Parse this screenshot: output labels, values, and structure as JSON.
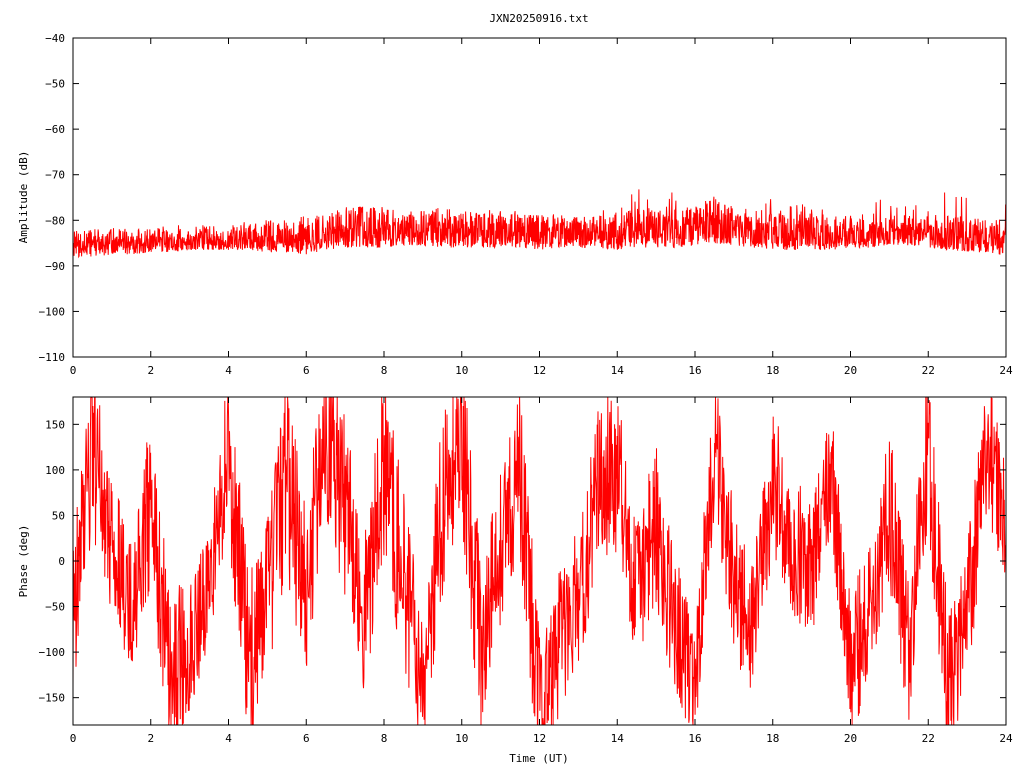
{
  "title": "JXN20250916.txt",
  "chart_data": [
    {
      "type": "line",
      "panel": "amplitude",
      "xlabel": "",
      "ylabel": "Amplitude (dB)",
      "xlim": [
        0,
        24
      ],
      "ylim": [
        -110,
        -40
      ],
      "xticks": [
        0,
        2,
        4,
        6,
        8,
        10,
        12,
        14,
        16,
        18,
        20,
        22,
        24
      ],
      "yticks": [
        -40,
        -50,
        -60,
        -70,
        -80,
        -90,
        -100,
        -110
      ],
      "grid": false,
      "series_color": "#ff0000",
      "series": [
        {
          "x": [
            0,
            0.5,
            1,
            1.5,
            2,
            2.5,
            3,
            3.5,
            4,
            4.5,
            5,
            5.5,
            6,
            6.5,
            7,
            7.5,
            8,
            8.5,
            9,
            9.5,
            10,
            10.5,
            11,
            11.5,
            12,
            12.5,
            13,
            13.5,
            14,
            14.5,
            15,
            15.5,
            16,
            16.5,
            17,
            17.5,
            18,
            18.5,
            19,
            19.5,
            20,
            20.5,
            21,
            21.5,
            22,
            22.5,
            23,
            23.5,
            24
          ],
          "low": [
            -88,
            -88,
            -87.5,
            -87.5,
            -87,
            -87,
            -86.5,
            -86.5,
            -86.5,
            -86.5,
            -87,
            -87,
            -87.5,
            -86.5,
            -86,
            -86,
            -86,
            -85.5,
            -85.5,
            -86,
            -86,
            -86,
            -86,
            -86,
            -86.5,
            -86,
            -86,
            -86,
            -86.5,
            -86,
            -86,
            -86,
            -85.5,
            -85,
            -85.5,
            -86,
            -86.5,
            -86.5,
            -86.5,
            -86.5,
            -86,
            -86,
            -85.5,
            -85.5,
            -86,
            -86.5,
            -87,
            -87,
            -88
          ],
          "high": [
            -82,
            -82.5,
            -82,
            -82,
            -82,
            -81.5,
            -82,
            -81.5,
            -82,
            -80,
            -80,
            -80.5,
            -80,
            -78.5,
            -77.5,
            -77,
            -77.5,
            -78.5,
            -78,
            -78,
            -78,
            -78.5,
            -78,
            -78.5,
            -79,
            -79,
            -79,
            -78.5,
            -79,
            -77,
            -78,
            -77.5,
            -76,
            -75,
            -77,
            -77.5,
            -78,
            -78,
            -78.5,
            -79.5,
            -79,
            -80,
            -79,
            -79.5,
            -79,
            -79,
            -79,
            -79.5,
            -80
          ],
          "peak": [
            -83,
            -82,
            -81,
            -82,
            -82,
            -81,
            -81,
            -81,
            -81,
            -80,
            -80,
            -80,
            -79,
            -78,
            -77,
            -77,
            -77,
            -78,
            -78,
            -77,
            -78,
            -78,
            -77,
            -78,
            -79,
            -78,
            -78,
            -77,
            -78,
            -72,
            -72,
            -74,
            -75,
            -73,
            -74,
            -74,
            -75,
            -76,
            -76,
            -77,
            -78,
            -76,
            -75,
            -76,
            -76,
            -73,
            -73,
            -74,
            -75
          ]
        }
      ]
    },
    {
      "type": "line",
      "panel": "phase",
      "xlabel": "Time (UT)",
      "ylabel": "Phase (deg)",
      "xlim": [
        0,
        24
      ],
      "ylim": [
        -180,
        180
      ],
      "xticks": [
        0,
        2,
        4,
        6,
        8,
        10,
        12,
        14,
        16,
        18,
        20,
        22,
        24
      ],
      "yticks": [
        150,
        100,
        50,
        0,
        -50,
        -100,
        -150
      ],
      "grid": false,
      "series_color": "#ff0000",
      "series": [
        {
          "x": [
            0,
            0.5,
            1,
            1.5,
            2,
            2.5,
            3,
            3.5,
            4,
            4.5,
            5,
            5.5,
            6,
            6.5,
            7,
            7.5,
            8,
            8.5,
            9,
            9.5,
            10,
            10.5,
            11,
            11.5,
            12,
            12.5,
            13,
            13.5,
            14,
            14.5,
            15,
            15.5,
            16,
            16.5,
            17,
            17.5,
            18,
            18.5,
            19,
            19.5,
            20,
            20.5,
            21,
            21.5,
            22,
            22.5,
            23,
            23.5,
            24
          ],
          "center": [
            -60,
            120,
            20,
            -50,
            60,
            -130,
            -90,
            -30,
            120,
            -110,
            -40,
            90,
            -40,
            150,
            60,
            -60,
            110,
            -20,
            -130,
            60,
            140,
            -100,
            20,
            100,
            -160,
            -90,
            -40,
            80,
            100,
            -40,
            40,
            -70,
            -140,
            130,
            -20,
            -80,
            90,
            20,
            -10,
            100,
            -120,
            -50,
            60,
            -100,
            120,
            -140,
            -60,
            130,
            40
          ],
          "spread": [
            90,
            100,
            80,
            70,
            100,
            90,
            80,
            60,
            90,
            110,
            90,
            110,
            100,
            100,
            100,
            90,
            110,
            100,
            80,
            100,
            100,
            100,
            90,
            100,
            90,
            80,
            80,
            90,
            90,
            80,
            90,
            80,
            60,
            80,
            80,
            80,
            80,
            80,
            80,
            70,
            80,
            80,
            90,
            80,
            90,
            90,
            80,
            80,
            80
          ]
        }
      ]
    }
  ]
}
